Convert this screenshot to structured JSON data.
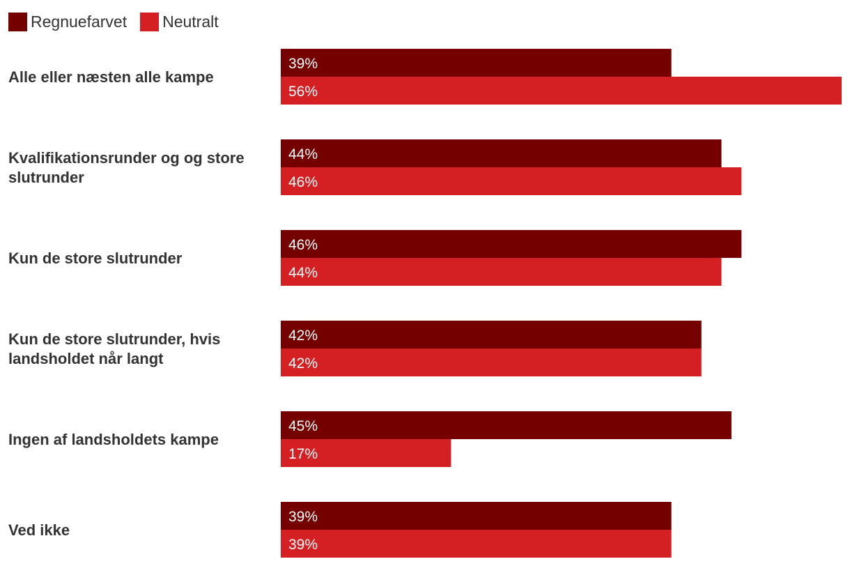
{
  "chart_data": {
    "type": "bar",
    "orientation": "horizontal",
    "title": "",
    "xlabel": "",
    "ylabel": "",
    "xlim": [
      0,
      56
    ],
    "grid": false,
    "legend_position": "top-left",
    "categories": [
      [
        "Alle eller næsten alle kampe"
      ],
      [
        "Kvalifikationsrunder og og store",
        "slutrunder"
      ],
      [
        "Kun de store slutrunder"
      ],
      [
        "Kun de store slutrunder, hvis",
        "landsholdet når langt"
      ],
      [
        "Ingen af landsholdets kampe"
      ],
      [
        "Ved ikke"
      ]
    ],
    "series": [
      {
        "name": "Regnuefarvet",
        "color": "#750000",
        "values": [
          39,
          44,
          46,
          42,
          45,
          39
        ],
        "labels": [
          "39%",
          "44%",
          "46%",
          "42%",
          "45%",
          "39%"
        ]
      },
      {
        "name": "Neutralt",
        "color": "#d42023",
        "values": [
          56,
          46,
          44,
          42,
          17,
          39
        ],
        "labels": [
          "56%",
          "46%",
          "44%",
          "42%",
          "17%",
          "39%"
        ]
      }
    ]
  }
}
